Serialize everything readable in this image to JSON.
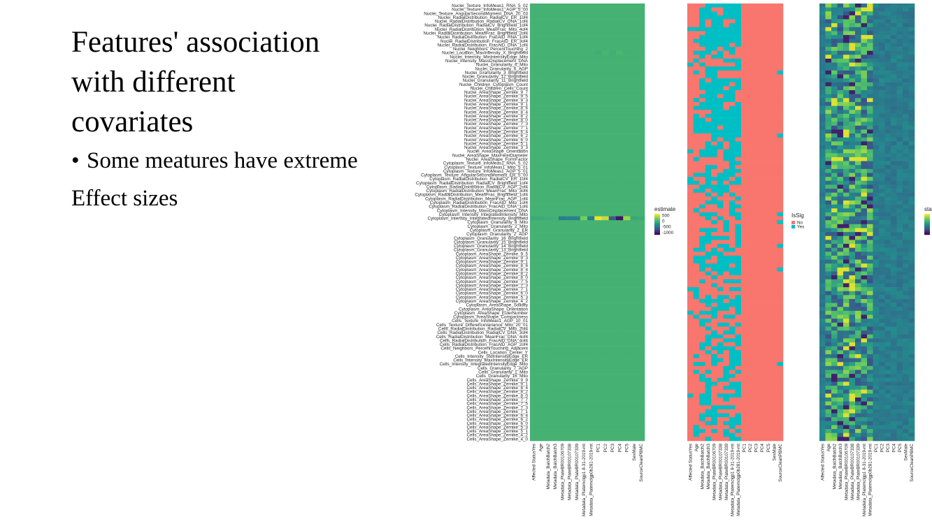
{
  "slide": {
    "title_line1": "Features' association",
    "title_line2": "with different",
    "title_line3": "covariates",
    "bullet1": "Some meatures have extreme",
    "bullet1_cont": "Effect sizes"
  },
  "chart_data": {
    "type": "heatmap",
    "title": "",
    "features": [
      "Nuclei_Texture_InfoMeas1_RNA_5_02",
      "Nuclei_Texture_InfoMeas1_AGP_5_00",
      "Nuclei_Texture_AngularSecondMoment_DNA_20_03",
      "Nuclei_RadialDistribution_RadialCV_ER_1of4",
      "Nuclei_RadialDistribution_RadialCV_DNA_1of4",
      "Nuclei_RadialDistribution_RadialCV_Brightfield_1of4",
      "Nuclei_RadialDistribution_MeanFrac_Mito_4of4",
      "Nuclei_RadialDistribution_MeanFrac_Brightfield_2of4",
      "Nuclei_RadialDistribution_FracAtD_RNA_1of4",
      "Nuclei_RadialDistribution_FracAtD_ER_3of4",
      "Nuclei_RadialDistribution_FracAtD_DNA_1of4",
      "Nuclei_Neighbors_PercentTouching_2",
      "Nuclei_Location_MaxIntensity_X_Brightfield",
      "Nuclei_Intensity_MinIntensityEdge_Mito",
      "Nuclei_Intensity_MassDisplacement_DNA",
      "Nuclei_Granularity_6_Mito",
      "Nuclei_Granularity_6_AGP",
      "Nuclei_Granularity_3_Brightfield",
      "Nuclei_Granularity_12_Brightfield",
      "Nuclei_Granularity_11_Brightfield",
      "Nuclei_Children_Cytoplasm_Count",
      "Nuclei_Children_Cells_Count",
      "Nuclei_AreaShape_Zernike_9_7",
      "Nuclei_AreaShape_Zernike_9_5",
      "Nuclei_AreaShape_Zernike_9_3",
      "Nuclei_AreaShape_Zernike_9_1",
      "Nuclei_AreaShape_Zernike_8_6",
      "Nuclei_AreaShape_Zernike_8_4",
      "Nuclei_AreaShape_Zernike_8_2",
      "Nuclei_AreaShape_Zernike_8_0",
      "Nuclei_AreaShape_Zernike_7_3",
      "Nuclei_AreaShape_Zernike_7_1",
      "Nuclei_AreaShape_Zernike_6_4",
      "Nuclei_AreaShape_Zernike_6_2",
      "Nuclei_AreaShape_Zernike_6_0",
      "Nuclei_AreaShape_Zernike_5_1",
      "Nuclei_AreaShape_Zernike_3_3",
      "Nuclei_AreaShape_Orientation",
      "Nuclei_AreaShape_MaxFeretDiameter",
      "Nuclei_AreaShape_FormFactor",
      "Cytoplasm_Texture_InfoMeas1_RNA_5_02",
      "Cytoplasm_Texture_InfoMeas1_Mito_5_01",
      "Cytoplasm_Texture_InfoMeas1_AGP_5_01",
      "Cytoplasm_Texture_AngularSecondMoment_ER_5_00",
      "Cytoplasm_RadialDistribution_RadialCV_ER_1of4",
      "Cytoplasm_RadialDistribution_RadialCV_Brightfield_1of4",
      "Cytoplasm_RadialDistribution_RadialCV_AGP_2of4",
      "Cytoplasm_RadialDistribution_MeanFrac_Mito_3of4",
      "Cytoplasm_RadialDistribution_MeanFrac_Brightfield_1of4",
      "Cytoplasm_RadialDistribution_MeanFrac_AGP_1of4",
      "Cytoplasm_RadialDistribution_FracAtD_Mito_1of4",
      "Cytoplasm_RadialDistribution_FracAtD_DNA_1of4",
      "Cytoplasm_Intensity_MassDisplacement_DNA",
      "Cytoplasm_Intensity_IntegratedIntensity_Mito",
      "Cytoplasm_Intensity_IntegratedIntensity_Brightfield",
      "Cytoplasm_Granularity_8_Mito",
      "Cytoplasm_Granularity_2_Mito",
      "Cytoplasm_Granularity_2_ER",
      "Cytoplasm_Granularity_2_AGP",
      "Cytoplasm_Granularity_16_Brightfield",
      "Cytoplasm_Granularity_15_Brightfield",
      "Cytoplasm_Granularity_14_Brightfield",
      "Cytoplasm_Granularity_13_Brightfield",
      "Cytoplasm_AreaShape_Zernike_9_5",
      "Cytoplasm_AreaShape_Zernike_9_3",
      "Cytoplasm_AreaShape_Zernike_9_1",
      "Cytoplasm_AreaShape_Zernike_8_6",
      "Cytoplasm_AreaShape_Zernike_8_4",
      "Cytoplasm_AreaShape_Zernike_8_2",
      "Cytoplasm_AreaShape_Zernike_8_0",
      "Cytoplasm_AreaShape_Zernike_7_5",
      "Cytoplasm_AreaShape_Zernike_7_3",
      "Cytoplasm_AreaShape_Zernike_7_1",
      "Cytoplasm_AreaShape_Zernike_6_0",
      "Cytoplasm_AreaShape_Zernike_5_3",
      "Cytoplasm_AreaShape_Zernike_4_2",
      "Cytoplasm_AreaShape_Solidity",
      "Cytoplasm_AreaShape_Orientation",
      "Cytoplasm_AreaShape_EulerNumber",
      "Cytoplasm_AreaShape_Compactness",
      "Cells_Texture_InfoMeas1_AGP_10_01",
      "Cells_Texture_DifferenceVariance_Mito_20_01",
      "Cells_RadialDistribution_RadialCV_Mito_2of4",
      "Cells_RadialDistribution_RadialCV_DNA_3of4",
      "Cells_RadialDistribution_MeanFrac_DNA_4of4",
      "Cells_RadialDistribution_FracAtD_DNA_4of4",
      "Cells_RadialDistribution_FracAtD_AGP_2of4",
      "Cells_Neighbors_PercentTouching_Adjacent",
      "Cells_Location_Center_Y",
      "Cells_Intensity_StdIntensityEdge_ER",
      "Cells_Intensity_MaxIntensityEdge_ER",
      "Cells_Intensity_IntegratedIntensityEdge_Mito",
      "Cells_Granularity_7_AGP",
      "Cells_Granularity_1_Mito",
      "Cells_Granularity_16_Mito",
      "Cells_AreaShape_Zernike_9_9",
      "Cells_AreaShape_Zernike_9_1",
      "Cells_AreaShape_Zernike_8_4",
      "Cells_AreaShape_Zernike_8_2",
      "Cells_AreaShape_Zernike_8_0",
      "Cells_AreaShape_Zernike_7_7",
      "Cells_AreaShape_Zernike_7_5",
      "Cells_AreaShape_Zernike_7_3",
      "Cells_AreaShape_Zernike_7_1",
      "Cells_AreaShape_Zernike_6_4",
      "Cells_AreaShape_Zernike_6_2",
      "Cells_AreaShape_Zernike_6_0",
      "Cells_AreaShape_Zernike_5_3",
      "Cells_AreaShape_Zernike_5_1",
      "Cells_AreaShape_Zernike_4_2",
      "Cells_AreaShape_Zernike_4_0"
    ],
    "covariates": [
      "Affected StatusYes",
      "Age",
      "Metadata_BatchBatch2",
      "Metadata_BatchBatch3",
      "Metadata_PlateBR00106709",
      "Metadata_PlateBR00107338",
      "Metadata_PlateBR00107339",
      "Metadata_Platemclgp1 8-31-2019-mt",
      "Metadata_Platemclgp0b281-2019-mt",
      "PC1",
      "PC2",
      "PC3",
      "PC4",
      "PC5",
      "SexMale",
      "SourceCleanPBMC"
    ],
    "panels": [
      {
        "name": "estimate",
        "legend_title": "estimate",
        "legend_ticks": [
          "500",
          "0",
          "-500",
          "-1000"
        ],
        "legend_tick_values": [
          500,
          0,
          -500,
          -1000
        ],
        "range": [
          -1200,
          650
        ],
        "base_value": 0,
        "highlight_rows": [
          {
            "feature": "Cytoplasm_Intensity_IntegratedIntensity_Mito",
            "values": [
              0,
              0,
              0,
              0,
              0,
              0,
              0,
              0,
              0,
              0,
              0,
              0,
              0,
              0,
              0,
              0
            ]
          },
          {
            "feature": "Cytoplasm_Intensity_IntegratedIntensity_Brightfield",
            "values": [
              -80,
              -60,
              -40,
              -30,
              -420,
              -380,
              -360,
              250,
              -420,
              600,
              470,
              -650,
              -1100,
              380,
              -90,
              -60
            ]
          },
          {
            "feature": "Nuclei_Location_MaxIntensity_X_Brightfield",
            "values": [
              0,
              0,
              0,
              0,
              0,
              0,
              0,
              0,
              0,
              -40,
              30,
              -30,
              40,
              -20,
              0,
              0
            ]
          }
        ]
      },
      {
        "name": "IsSig",
        "legend_title": "IsSig",
        "legend_labels": [
          "No",
          "Yes"
        ],
        "colors": {
          "No": "#f8766d",
          "Yes": "#00bfc4"
        },
        "note": "PC1-PC5, SexMale, SourceCleanPBMC columns are all No; first 9 covariates mix of Yes/No"
      },
      {
        "name": "statistic",
        "legend_title": "sta",
        "legend_ticks": [
          "",
          "",
          ""
        ],
        "note": "standardized statistic heatmap, viridis palette, variation concentrated in first 9 covariate columns"
      }
    ],
    "colors": {
      "viridis_low": "#440154",
      "viridis_mid": "#21908c",
      "viridis_high": "#fde725",
      "estimate_base": "#2db27d",
      "issig_no": "#f8766d",
      "issig_yes": "#00bfc4"
    }
  }
}
